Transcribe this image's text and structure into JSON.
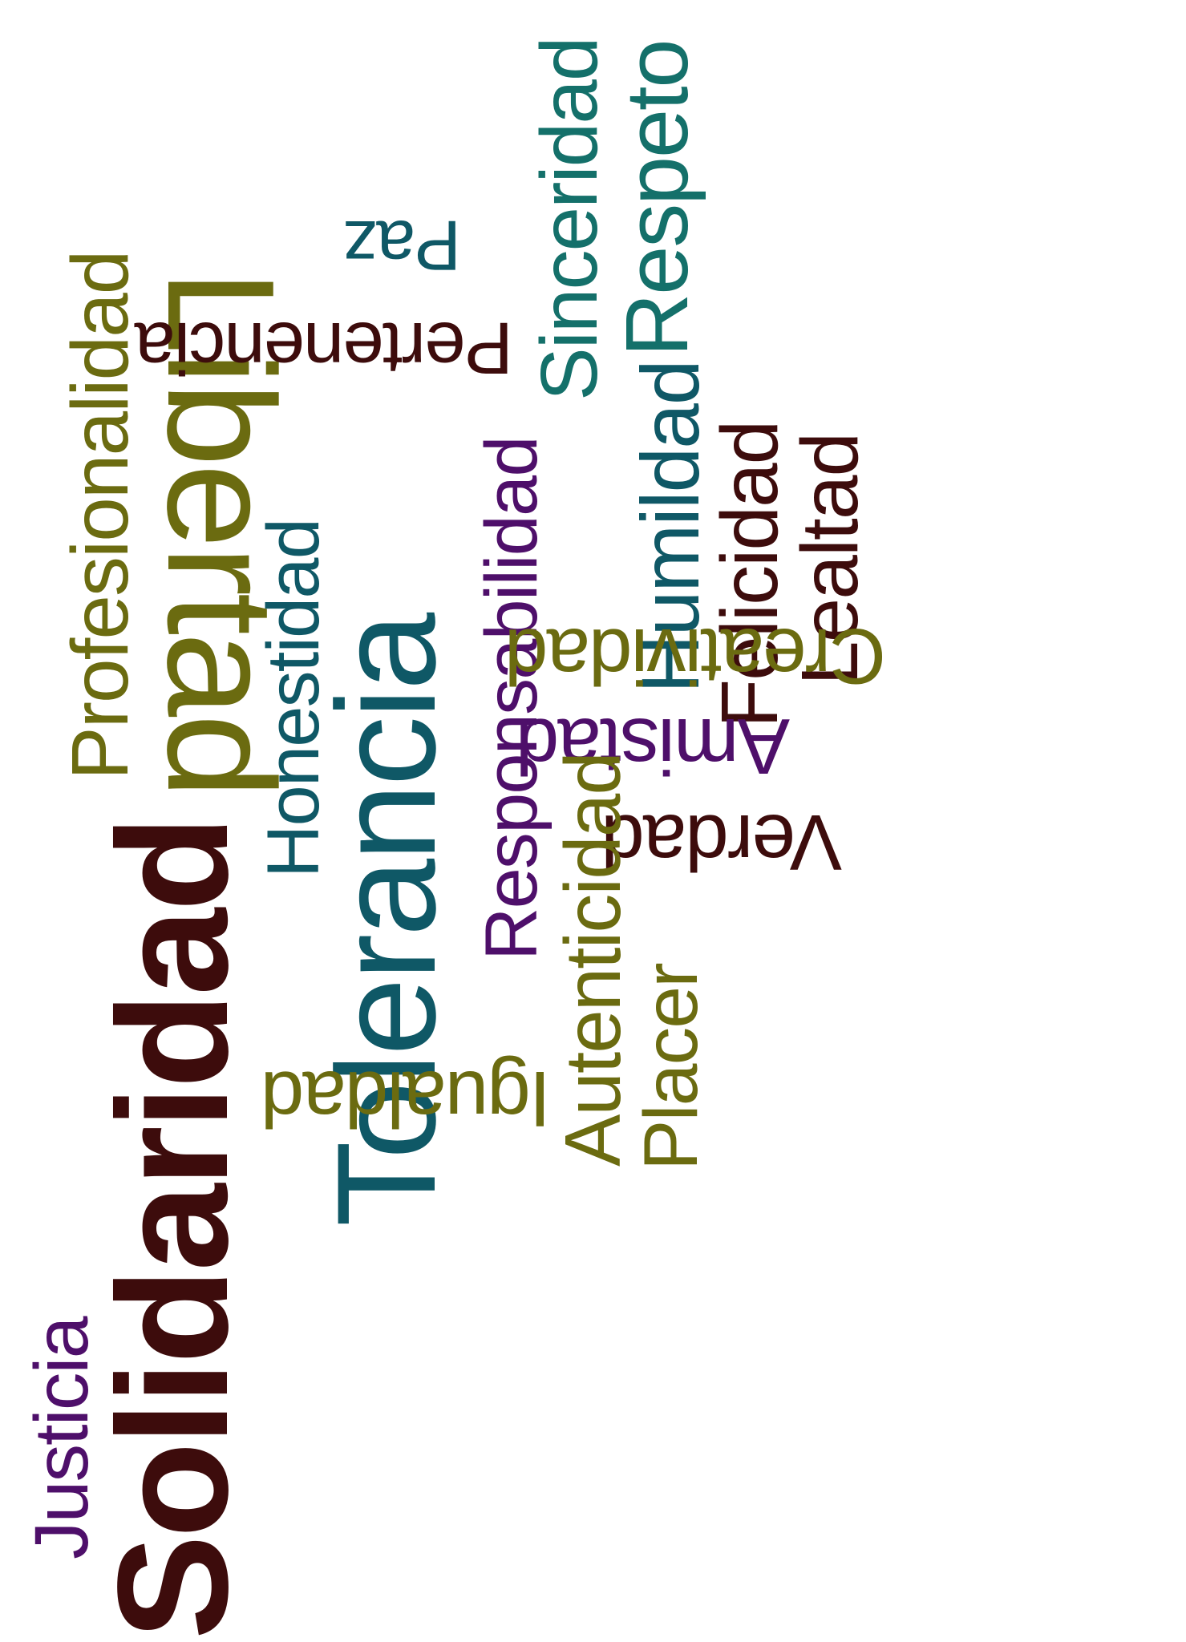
{
  "words": {
    "solidaridad": "Solidaridad",
    "tolerancia": "Tolerancia",
    "libertad": "Libertad",
    "profesionalidad": "Profesionalidad",
    "pertenencia": "Pertenencia",
    "paz": "Paz",
    "sinceridad": "Sinceridad",
    "respeto": "Respeto",
    "humildad": "Humildad",
    "felicidad": "Felicidad",
    "lealtad": "Lealtad",
    "honestidad": "Honestidad",
    "responsabilidad": "Responsabilidad",
    "creatividad": "Creatividad",
    "amistad": "Amistad",
    "verdad": "Verdad",
    "autenticidad": "Autenticidad",
    "placer": "Placer",
    "igualdad": "Igualdad",
    "justicia": "Justicia"
  },
  "palette": {
    "maroon": "#3d0c0c",
    "teal": "#0f5866",
    "olive": "#6b6b10",
    "purple": "#4e0f6a",
    "sea": "#14706a"
  }
}
